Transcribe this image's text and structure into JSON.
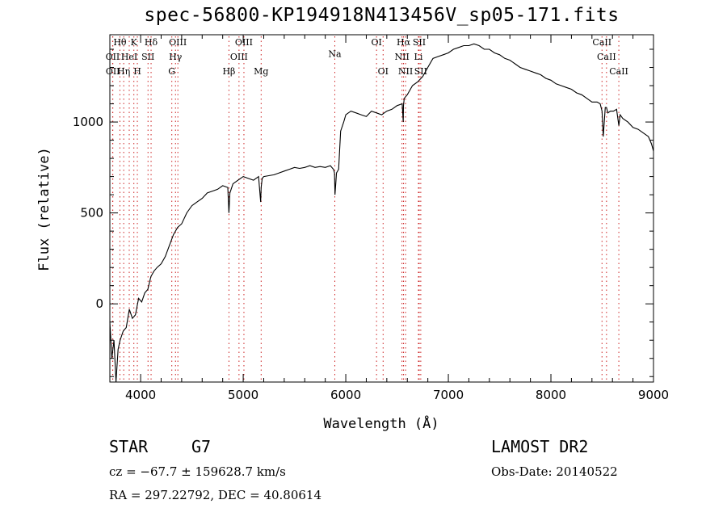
{
  "chart_data": {
    "type": "line",
    "title": "spec-56800-KP194918N413456V_sp05-171.fits",
    "xlabel": "Wavelength (Å)",
    "ylabel": "Flux (relative)",
    "xlim": [
      3700,
      9000
    ],
    "ylim": [
      -430,
      1480
    ],
    "xticks": [
      4000,
      5000,
      6000,
      7000,
      8000,
      9000
    ],
    "yticks": [
      0,
      500,
      1000
    ],
    "grid": false,
    "series": [
      {
        "color": "#000000",
        "x": [
          3700,
          3720,
          3740,
          3760,
          3780,
          3800,
          3830,
          3860,
          3890,
          3920,
          3950,
          3980,
          4010,
          4040,
          4070,
          4100,
          4130,
          4160,
          4200,
          4240,
          4280,
          4320,
          4360,
          4400,
          4450,
          4500,
          4550,
          4600,
          4650,
          4700,
          4750,
          4800,
          4850,
          4861,
          4870,
          4900,
          4950,
          5000,
          5050,
          5100,
          5150,
          5170,
          5175,
          5185,
          5200,
          5250,
          5300,
          5350,
          5400,
          5450,
          5500,
          5550,
          5600,
          5650,
          5700,
          5750,
          5800,
          5850,
          5880,
          5890,
          5895,
          5910,
          5930,
          5950,
          5980,
          6000,
          6050,
          6100,
          6150,
          6200,
          6250,
          6300,
          6350,
          6400,
          6450,
          6500,
          6550,
          6560,
          6563,
          6570,
          6600,
          6650,
          6700,
          6750,
          6800,
          6850,
          6900,
          6950,
          7000,
          7050,
          7100,
          7150,
          7200,
          7250,
          7300,
          7350,
          7400,
          7450,
          7500,
          7550,
          7600,
          7650,
          7700,
          7750,
          7800,
          7850,
          7900,
          7950,
          8000,
          8050,
          8100,
          8150,
          8200,
          8250,
          8300,
          8350,
          8400,
          8450,
          8480,
          8498,
          8510,
          8530,
          8542,
          8555,
          8580,
          8610,
          8640,
          8662,
          8675,
          8700,
          8750,
          8800,
          8850,
          8900,
          8950,
          8980,
          9000
        ],
        "y": [
          -100,
          -300,
          -200,
          -430,
          -250,
          -200,
          -150,
          -130,
          -30,
          -80,
          -60,
          30,
          10,
          60,
          80,
          150,
          180,
          200,
          220,
          260,
          320,
          380,
          420,
          440,
          500,
          540,
          560,
          580,
          610,
          620,
          630,
          650,
          640,
          500,
          610,
          660,
          680,
          700,
          690,
          680,
          700,
          560,
          640,
          690,
          700,
          705,
          710,
          720,
          730,
          740,
          750,
          745,
          750,
          760,
          750,
          755,
          750,
          760,
          740,
          720,
          600,
          720,
          740,
          950,
          1000,
          1040,
          1060,
          1050,
          1040,
          1030,
          1060,
          1050,
          1040,
          1060,
          1070,
          1090,
          1100,
          1000,
          1090,
          1130,
          1150,
          1200,
          1220,
          1250,
          1300,
          1350,
          1360,
          1370,
          1380,
          1400,
          1410,
          1420,
          1420,
          1430,
          1420,
          1400,
          1400,
          1380,
          1370,
          1350,
          1340,
          1320,
          1300,
          1290,
          1280,
          1270,
          1260,
          1240,
          1230,
          1210,
          1200,
          1190,
          1180,
          1160,
          1150,
          1130,
          1110,
          1110,
          1100,
          1060,
          920,
          1080,
          1080,
          1050,
          1060,
          1060,
          1070,
          980,
          1040,
          1020,
          1000,
          970,
          960,
          940,
          920,
          880,
          840
        ]
      }
    ],
    "line_ids": [
      {
        "label": "Hθ",
        "x": 3798,
        "row": 1
      },
      {
        "label": "K",
        "x": 3934,
        "row": 1
      },
      {
        "label": "Hδ",
        "x": 4102,
        "row": 1
      },
      {
        "label": "OIII",
        "x": 4363,
        "row": 1
      },
      {
        "label": "OIII",
        "x": 5007,
        "row": 1
      },
      {
        "label": "OI",
        "x": 6300,
        "row": 1
      },
      {
        "label": "Hα",
        "x": 6563,
        "row": 1
      },
      {
        "label": "SII",
        "x": 6716,
        "row": 1
      },
      {
        "label": "CaII",
        "x": 8498,
        "row": 1
      },
      {
        "label": "OII",
        "x": 3727,
        "row": 2
      },
      {
        "label": "HeI",
        "x": 3889,
        "row": 2
      },
      {
        "label": "SII",
        "x": 4072,
        "row": 2
      },
      {
        "label": "Hγ",
        "x": 4340,
        "row": 2
      },
      {
        "label": "OIII",
        "x": 4959,
        "row": 2
      },
      {
        "label": "NII",
        "x": 6548,
        "row": 2
      },
      {
        "label": "Li",
        "x": 6708,
        "row": 2
      },
      {
        "label": "CaII",
        "x": 8542,
        "row": 2
      },
      {
        "label": "OII",
        "x": 3729,
        "row": 3
      },
      {
        "label": "Hη",
        "x": 3835,
        "row": 3
      },
      {
        "label": "H",
        "x": 3968,
        "row": 3
      },
      {
        "label": "G",
        "x": 4304,
        "row": 3
      },
      {
        "label": "Hβ",
        "x": 4861,
        "row": 3
      },
      {
        "label": "Mg",
        "x": 5175,
        "row": 3
      },
      {
        "label": "Na",
        "x": 5893,
        "row": 1.8
      },
      {
        "label": "OI",
        "x": 6364,
        "row": 3
      },
      {
        "label": "NII",
        "x": 6583,
        "row": 3
      },
      {
        "label": "SII",
        "x": 6731,
        "row": 3
      },
      {
        "label": "CaII",
        "x": 8662,
        "row": 3
      }
    ]
  },
  "info": {
    "object_class": "STAR",
    "subclass": "G7",
    "survey": "LAMOST DR2",
    "redshift": "cz = −67.7 ± 159628.7 km/s",
    "obs_date": "Obs-Date: 20140522",
    "coords": "RA = 297.22792, DEC =  40.80614"
  }
}
